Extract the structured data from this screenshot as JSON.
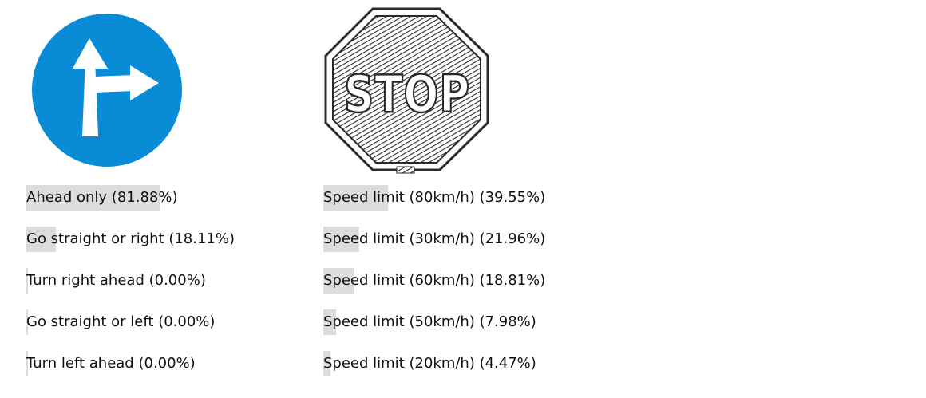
{
  "colors": {
    "ahead_sign_blue": "#0a8bd6",
    "bar_gray": "#dcdcdc",
    "stop_ink": "#2a2a2a"
  },
  "predictions": [
    {
      "image_icon": "ahead-or-right-sign-icon",
      "results": [
        {
          "label": "Ahead only",
          "percent_text": "(81.88%)",
          "probability": 81.88
        },
        {
          "label": "Go straight or right",
          "percent_text": "(18.11%)",
          "probability": 18.11
        },
        {
          "label": "Turn right ahead",
          "percent_text": "(0.00%)",
          "probability": 0.0
        },
        {
          "label": "Go straight or left",
          "percent_text": "(0.00%)",
          "probability": 0.0
        },
        {
          "label": "Turn left ahead",
          "percent_text": "(0.00%)",
          "probability": 0.0
        }
      ]
    },
    {
      "image_icon": "stop-sign-sketch-icon",
      "image_text": "STOP",
      "results": [
        {
          "label": "Speed limit (80km/h)",
          "percent_text": "(39.55%)",
          "probability": 39.55
        },
        {
          "label": "Speed limit (30km/h)",
          "percent_text": "(21.96%)",
          "probability": 21.96
        },
        {
          "label": "Speed limit (60km/h)",
          "percent_text": "(18.81%)",
          "probability": 18.81
        },
        {
          "label": "Speed limit (50km/h)",
          "percent_text": "(7.98%)",
          "probability": 7.98
        },
        {
          "label": "Speed limit (20km/h)",
          "percent_text": "(4.47%)",
          "probability": 4.47
        }
      ]
    }
  ]
}
